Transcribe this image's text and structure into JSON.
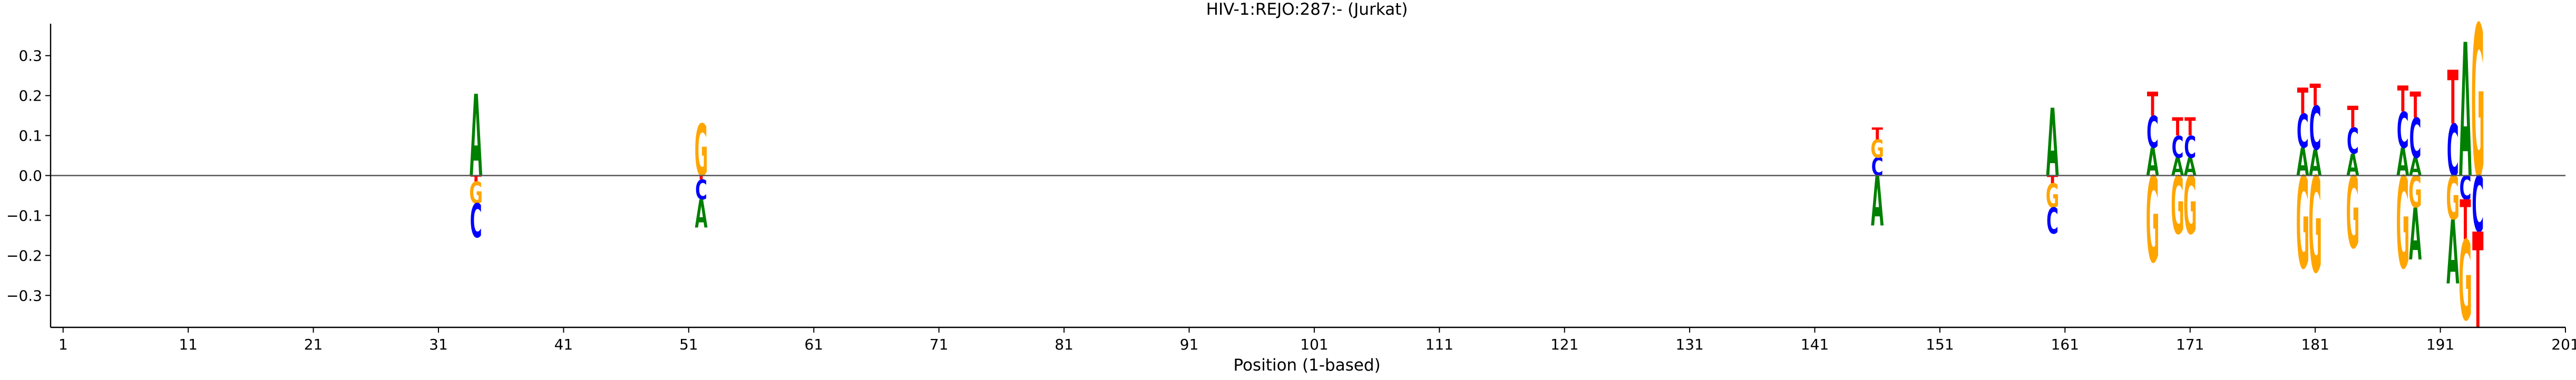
{
  "chart_data": {
    "type": "logo",
    "title": "HIV-1:REJO:287:-  (Jurkat)",
    "xlabel": "Position (1-based)",
    "ylabel": "",
    "xlim": [
      0,
      201
    ],
    "ylim": [
      -0.38,
      0.38
    ],
    "x_ticks": [
      1,
      11,
      21,
      31,
      41,
      51,
      61,
      71,
      81,
      91,
      101,
      111,
      121,
      131,
      141,
      151,
      161,
      171,
      181,
      191,
      201
    ],
    "y_ticks": [
      -0.3,
      -0.2,
      -0.1,
      0.0,
      0.1,
      0.2,
      0.3
    ],
    "y_tick_labels": [
      "−0.3",
      "−0.2",
      "−0.1",
      "0.0",
      "0.1",
      "0.2",
      "0.3"
    ],
    "grid": false,
    "zero_line": true,
    "colors": {
      "A": "#008000",
      "C": "#0000ff",
      "G": "#ffa500",
      "T": "#ff0000"
    },
    "positions": [
      {
        "pos": 34,
        "above": [
          {
            "base": "A",
            "h": 0.205
          }
        ],
        "below": [
          {
            "base": "T",
            "h": 0.015
          },
          {
            "base": "G",
            "h": 0.055
          },
          {
            "base": "C",
            "h": 0.085
          }
        ]
      },
      {
        "pos": 52,
        "above": [
          {
            "base": "G",
            "h": 0.13
          }
        ],
        "below": [
          {
            "base": "T",
            "h": 0.01
          },
          {
            "base": "C",
            "h": 0.05
          },
          {
            "base": "A",
            "h": 0.07
          }
        ]
      },
      {
        "pos": 146,
        "above": [
          {
            "base": "C",
            "h": 0.045
          },
          {
            "base": "G",
            "h": 0.045
          },
          {
            "base": "T",
            "h": 0.03
          }
        ],
        "below": [
          {
            "base": "A",
            "h": 0.125
          }
        ]
      },
      {
        "pos": 160,
        "above": [
          {
            "base": "A",
            "h": 0.17
          }
        ],
        "below": [
          {
            "base": "T",
            "h": 0.02
          },
          {
            "base": "G",
            "h": 0.06
          },
          {
            "base": "C",
            "h": 0.065
          }
        ]
      },
      {
        "pos": 168,
        "above": [
          {
            "base": "A",
            "h": 0.07
          },
          {
            "base": "C",
            "h": 0.08
          },
          {
            "base": "T",
            "h": 0.06
          }
        ],
        "below": [
          {
            "base": "G",
            "h": 0.215
          }
        ]
      },
      {
        "pos": 170,
        "above": [
          {
            "base": "A",
            "h": 0.045
          },
          {
            "base": "C",
            "h": 0.055
          },
          {
            "base": "T",
            "h": 0.045
          }
        ],
        "below": [
          {
            "base": "G",
            "h": 0.145
          }
        ]
      },
      {
        "pos": 171,
        "above": [
          {
            "base": "A",
            "h": 0.045
          },
          {
            "base": "C",
            "h": 0.055
          },
          {
            "base": "T",
            "h": 0.045
          }
        ],
        "below": [
          {
            "base": "G",
            "h": 0.145
          }
        ]
      },
      {
        "pos": 180,
        "above": [
          {
            "base": "A",
            "h": 0.07
          },
          {
            "base": "C",
            "h": 0.085
          },
          {
            "base": "T",
            "h": 0.065
          }
        ],
        "below": [
          {
            "base": "G",
            "h": 0.23
          }
        ]
      },
      {
        "pos": 181,
        "above": [
          {
            "base": "A",
            "h": 0.065
          },
          {
            "base": "C",
            "h": 0.11
          },
          {
            "base": "T",
            "h": 0.055
          }
        ],
        "below": [
          {
            "base": "G",
            "h": 0.24
          }
        ]
      },
      {
        "pos": 184,
        "above": [
          {
            "base": "A",
            "h": 0.055
          },
          {
            "base": "C",
            "h": 0.065
          },
          {
            "base": "T",
            "h": 0.055
          }
        ],
        "below": [
          {
            "base": "G",
            "h": 0.18
          }
        ]
      },
      {
        "pos": 188,
        "above": [
          {
            "base": "A",
            "h": 0.07
          },
          {
            "base": "C",
            "h": 0.09
          },
          {
            "base": "T",
            "h": 0.065
          }
        ],
        "below": [
          {
            "base": "G",
            "h": 0.23
          }
        ]
      },
      {
        "pos": 189,
        "above": [
          {
            "base": "A",
            "h": 0.045
          },
          {
            "base": "C",
            "h": 0.1
          },
          {
            "base": "T",
            "h": 0.065
          }
        ],
        "below": [
          {
            "base": "G",
            "h": 0.08
          },
          {
            "base": "A",
            "h": 0.13
          }
        ]
      },
      {
        "pos": 192,
        "above": [
          {
            "base": "C",
            "h": 0.13
          },
          {
            "base": "T",
            "h": 0.135
          }
        ],
        "below": [
          {
            "base": "G",
            "h": 0.11
          },
          {
            "base": "A",
            "h": 0.16
          }
        ]
      },
      {
        "pos": 193,
        "above": [
          {
            "base": "A",
            "h": 0.335
          }
        ],
        "below": [
          {
            "base": "C",
            "h": 0.06
          },
          {
            "base": "T",
            "h": 0.1
          },
          {
            "base": "G",
            "h": 0.2
          }
        ]
      },
      {
        "pos": 194,
        "above": [
          {
            "base": "G",
            "h": 0.38
          }
        ],
        "below": [
          {
            "base": "C",
            "h": 0.14
          },
          {
            "base": "T",
            "h": 0.24
          }
        ]
      }
    ]
  }
}
